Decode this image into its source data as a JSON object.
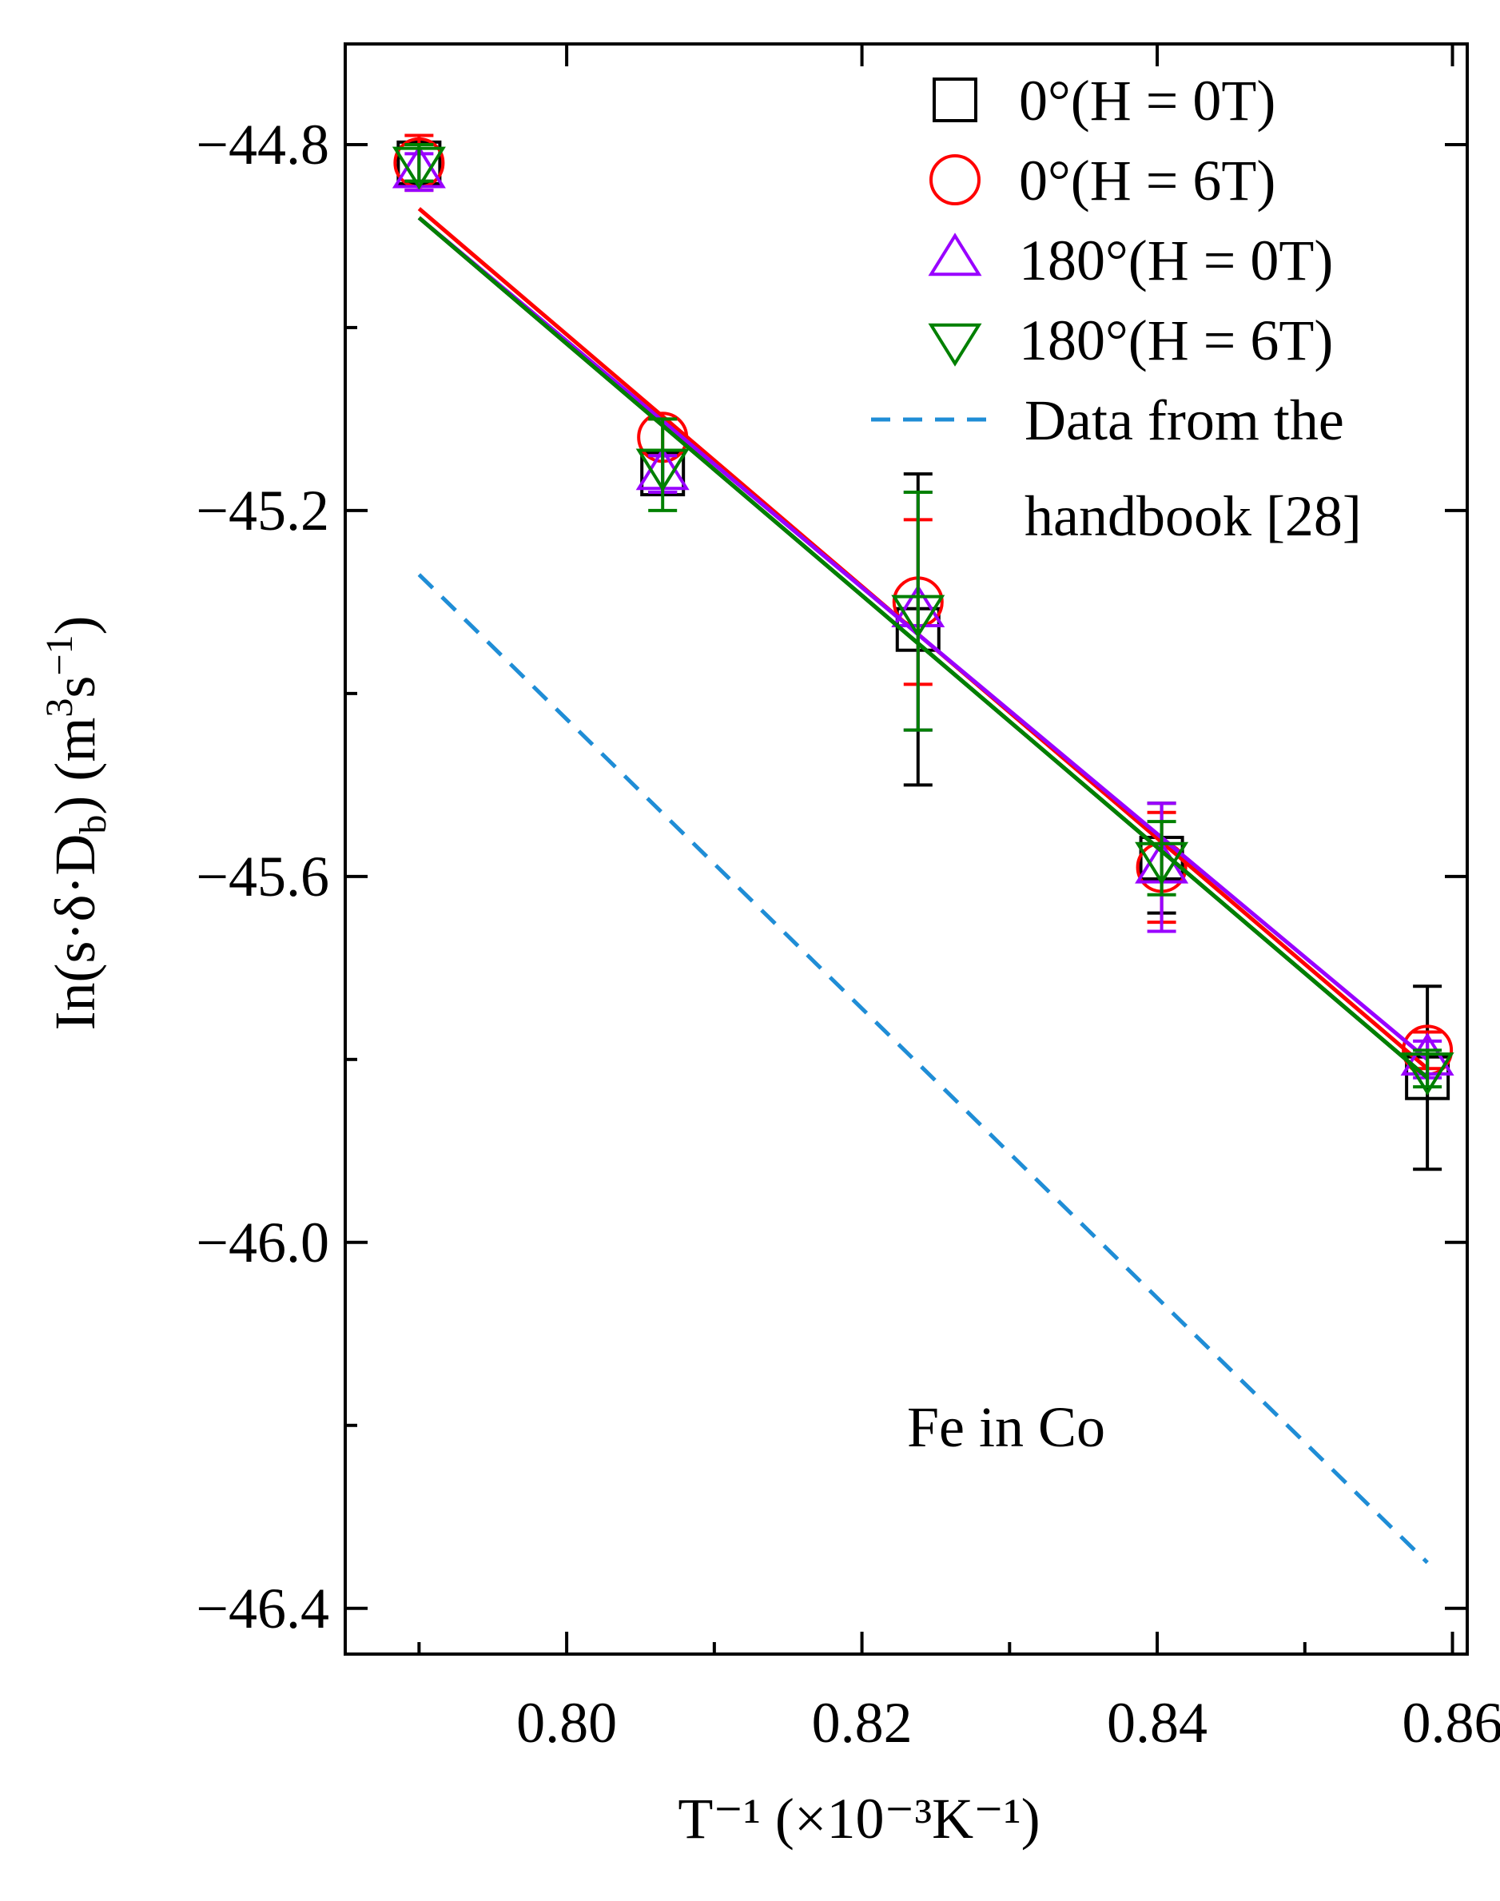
{
  "chart_data": {
    "type": "scatter",
    "xlabel": "T⁻¹ (×10⁻³K⁻¹)",
    "ylabel": "In(s·δ·D♭) (m³s⁻¹)",
    "ylabel_parts": {
      "prefix": "In(s·δ·D",
      "sub": "b",
      "mid": ") (m",
      "sup1": "3",
      "mid2": "s",
      "sup2": "−1",
      "suffix": ")"
    },
    "xlim": [
      0.785,
      0.861
    ],
    "ylim": [
      -46.45,
      -44.69
    ],
    "x_ticks": [
      0.8,
      0.82,
      0.84,
      0.86
    ],
    "x_tick_labels": [
      "0.80",
      "0.82",
      "0.84",
      "0.86"
    ],
    "x_minor_ticks": [
      0.79,
      0.81,
      0.83,
      0.85
    ],
    "y_ticks": [
      -44.8,
      -45.2,
      -45.6,
      -46.0,
      -46.4
    ],
    "y_tick_labels": [
      "−44.8",
      "−45.2",
      "−45.6",
      "−46.0",
      "−46.4"
    ],
    "y_minor_ticks": [
      -45.0,
      -45.4,
      -45.8,
      -46.2
    ],
    "legend_position": "top-right",
    "annotation": "Fe in Co",
    "series": [
      {
        "name": "0°(H = 0T)",
        "marker": "square",
        "color": "#000000",
        "x": [
          0.79,
          0.8065,
          0.8238,
          0.8403,
          0.8583
        ],
        "y": [
          -44.82,
          -45.16,
          -45.33,
          -45.58,
          -45.82
        ],
        "err": [
          0.02,
          0.02,
          0.17,
          0.06,
          0.1
        ],
        "fit": [
          [
            0.79,
            -44.88
          ],
          [
            0.8583,
            -45.82
          ]
        ]
      },
      {
        "name": "0°(H = 6T)",
        "marker": "circle",
        "color": "#ff0000",
        "x": [
          0.79,
          0.8065,
          0.8238,
          0.8403,
          0.8583
        ],
        "y": [
          -44.82,
          -45.12,
          -45.3,
          -45.59,
          -45.79
        ],
        "err": [
          0.03,
          0.02,
          0.09,
          0.06,
          0.02
        ],
        "fit": [
          [
            0.79,
            -44.87
          ],
          [
            0.8583,
            -45.81
          ]
        ]
      },
      {
        "name": "180°(H = 0T)",
        "marker": "triangle-up",
        "color": "#9900ff",
        "x": [
          0.79,
          0.8065,
          0.8238,
          0.8403,
          0.8583
        ],
        "y": [
          -44.83,
          -45.16,
          -45.31,
          -45.59,
          -45.8
        ],
        "err": [
          0.02,
          0.02,
          0.13,
          0.07,
          0.02
        ],
        "fit": [
          [
            0.79,
            -44.88
          ],
          [
            0.8583,
            -45.8
          ]
        ]
      },
      {
        "name": "180°(H = 6T)",
        "marker": "triangle-down",
        "color": "#008000",
        "x": [
          0.79,
          0.8065,
          0.8238,
          0.8403,
          0.8583
        ],
        "y": [
          -44.82,
          -45.15,
          -45.31,
          -45.58,
          -45.81
        ],
        "err": [
          0.02,
          0.05,
          0.13,
          0.04,
          0.02
        ],
        "fit": [
          [
            0.79,
            -44.88
          ],
          [
            0.8583,
            -45.82
          ]
        ]
      },
      {
        "name": "Data from  the handbook [28]",
        "name_lines": [
          "Data from  the",
          "handbook [28]"
        ],
        "marker": "none",
        "line_style": "dashed",
        "color": "#1f8dd6",
        "line": [
          [
            0.79,
            -45.27
          ],
          [
            0.8583,
            -46.35
          ]
        ]
      }
    ]
  }
}
